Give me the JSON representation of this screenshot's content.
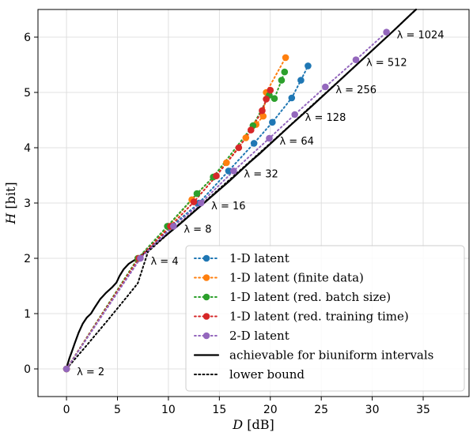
{
  "chart_data": {
    "type": "line",
    "xlabel": "D [dB]",
    "ylabel": "H [bit]",
    "xlim": [
      -2.8,
      39.5
    ],
    "ylim": [
      -0.5,
      6.5
    ],
    "xticks": [
      0,
      5,
      10,
      15,
      20,
      25,
      30,
      35
    ],
    "yticks": [
      0,
      1,
      2,
      3,
      4,
      5,
      6
    ],
    "grid": true,
    "legend_position": "lower-right",
    "series": [
      {
        "name": "1-D latent",
        "color": "#1f77b4",
        "style": "dotted-markers",
        "points": [
          [
            0,
            0
          ],
          [
            7.2,
            2.0
          ],
          [
            10.3,
            2.58
          ],
          [
            13.0,
            3.0
          ],
          [
            15.9,
            3.58
          ],
          [
            18.4,
            4.08
          ],
          [
            20.2,
            4.46
          ],
          [
            22.1,
            4.9
          ],
          [
            23.0,
            5.22
          ],
          [
            23.7,
            5.48
          ]
        ]
      },
      {
        "name": "1-D latent (finite data)",
        "color": "#ff7f0e",
        "style": "dotted-markers",
        "points": [
          [
            0,
            0
          ],
          [
            7.0,
            2.0
          ],
          [
            10.0,
            2.58
          ],
          [
            12.3,
            3.06
          ],
          [
            15.7,
            3.73
          ],
          [
            17.6,
            4.18
          ],
          [
            18.6,
            4.42
          ],
          [
            19.3,
            4.57
          ],
          [
            19.6,
            5.0
          ],
          [
            21.5,
            5.63
          ]
        ]
      },
      {
        "name": "1-D latent (red. batch size)",
        "color": "#2ca02c",
        "style": "dotted-markers",
        "points": [
          [
            0,
            0
          ],
          [
            7.0,
            2.0
          ],
          [
            9.9,
            2.58
          ],
          [
            12.8,
            3.17
          ],
          [
            14.4,
            3.47
          ],
          [
            18.3,
            4.4
          ],
          [
            19.9,
            4.95
          ],
          [
            20.4,
            4.89
          ],
          [
            21.1,
            5.22
          ],
          [
            21.4,
            5.37
          ]
        ]
      },
      {
        "name": "1-D latent (red. training time)",
        "color": "#d62728",
        "style": "dotted-markers",
        "points": [
          [
            0,
            0
          ],
          [
            7.1,
            2.0
          ],
          [
            10.2,
            2.58
          ],
          [
            12.5,
            3.02
          ],
          [
            14.7,
            3.49
          ],
          [
            16.9,
            4.0
          ],
          [
            18.1,
            4.32
          ],
          [
            19.2,
            4.67
          ],
          [
            19.6,
            4.88
          ],
          [
            20.0,
            5.04
          ]
        ]
      },
      {
        "name": "2-D latent",
        "color": "#9467bd",
        "style": "dotted-markers",
        "points": [
          [
            0,
            0
          ],
          [
            7.25,
            2.0
          ],
          [
            10.5,
            2.58
          ],
          [
            13.2,
            3.0
          ],
          [
            16.4,
            3.58
          ],
          [
            19.9,
            4.17
          ],
          [
            22.4,
            4.6
          ],
          [
            25.4,
            5.1
          ],
          [
            28.4,
            5.59
          ],
          [
            31.4,
            6.09
          ]
        ]
      },
      {
        "name": "achievable for biuniform intervals",
        "color": "#000000",
        "style": "solid",
        "points": [
          [
            0,
            0
          ],
          [
            0.1,
            0.08
          ],
          [
            0.3,
            0.2
          ],
          [
            0.5,
            0.3
          ],
          [
            0.8,
            0.46
          ],
          [
            1.2,
            0.66
          ],
          [
            1.6,
            0.82
          ],
          [
            2.0,
            0.93
          ],
          [
            2.4,
            1.0
          ],
          [
            2.8,
            1.12
          ],
          [
            3.3,
            1.26
          ],
          [
            3.9,
            1.38
          ],
          [
            4.5,
            1.48
          ],
          [
            4.9,
            1.56
          ],
          [
            5.2,
            1.68
          ],
          [
            5.6,
            1.8
          ],
          [
            6.1,
            1.9
          ],
          [
            6.6,
            1.96
          ],
          [
            7.0,
            2.0
          ],
          [
            8.0,
            2.15
          ],
          [
            9.0,
            2.3
          ],
          [
            10.0,
            2.45
          ],
          [
            11.0,
            2.6
          ],
          [
            12.0,
            2.76
          ],
          [
            13.0,
            2.92
          ],
          [
            14.0,
            3.08
          ],
          [
            15.0,
            3.24
          ],
          [
            16.0,
            3.4
          ],
          [
            17.0,
            3.57
          ],
          [
            18.0,
            3.74
          ],
          [
            19.0,
            3.9
          ],
          [
            20.0,
            4.07
          ],
          [
            22.0,
            4.41
          ],
          [
            24.0,
            4.74
          ],
          [
            26.0,
            5.08
          ],
          [
            28.0,
            5.42
          ],
          [
            30.0,
            5.76
          ],
          [
            32.0,
            6.1
          ],
          [
            34.0,
            6.45
          ],
          [
            34.3,
            6.5
          ]
        ]
      },
      {
        "name": "lower bound",
        "color": "#000000",
        "style": "dotted",
        "points": [
          [
            0,
            0
          ],
          [
            2.0,
            0.43
          ],
          [
            4.0,
            0.87
          ],
          [
            6.0,
            1.32
          ],
          [
            7.0,
            1.55
          ],
          [
            8.0,
            2.12
          ],
          [
            10.0,
            2.45
          ],
          [
            13.0,
            2.93
          ],
          [
            16.0,
            3.42
          ],
          [
            20.0,
            4.08
          ],
          [
            24.0,
            4.75
          ],
          [
            28.0,
            5.42
          ],
          [
            32.0,
            6.1
          ],
          [
            34.3,
            6.5
          ]
        ]
      }
    ],
    "annotations": [
      {
        "text": "λ = 2",
        "x": 0,
        "y": 0
      },
      {
        "text": "λ = 4",
        "x": 7.25,
        "y": 2.0
      },
      {
        "text": "λ = 8",
        "x": 10.5,
        "y": 2.58
      },
      {
        "text": "λ = 16",
        "x": 13.2,
        "y": 3.0
      },
      {
        "text": "λ = 32",
        "x": 16.4,
        "y": 3.58
      },
      {
        "text": "λ = 64",
        "x": 19.9,
        "y": 4.17
      },
      {
        "text": "λ = 128",
        "x": 22.4,
        "y": 4.6
      },
      {
        "text": "λ = 256",
        "x": 25.4,
        "y": 5.1
      },
      {
        "text": "λ = 512",
        "x": 28.4,
        "y": 5.59
      },
      {
        "text": "λ = 1024",
        "x": 31.4,
        "y": 6.09
      }
    ]
  }
}
